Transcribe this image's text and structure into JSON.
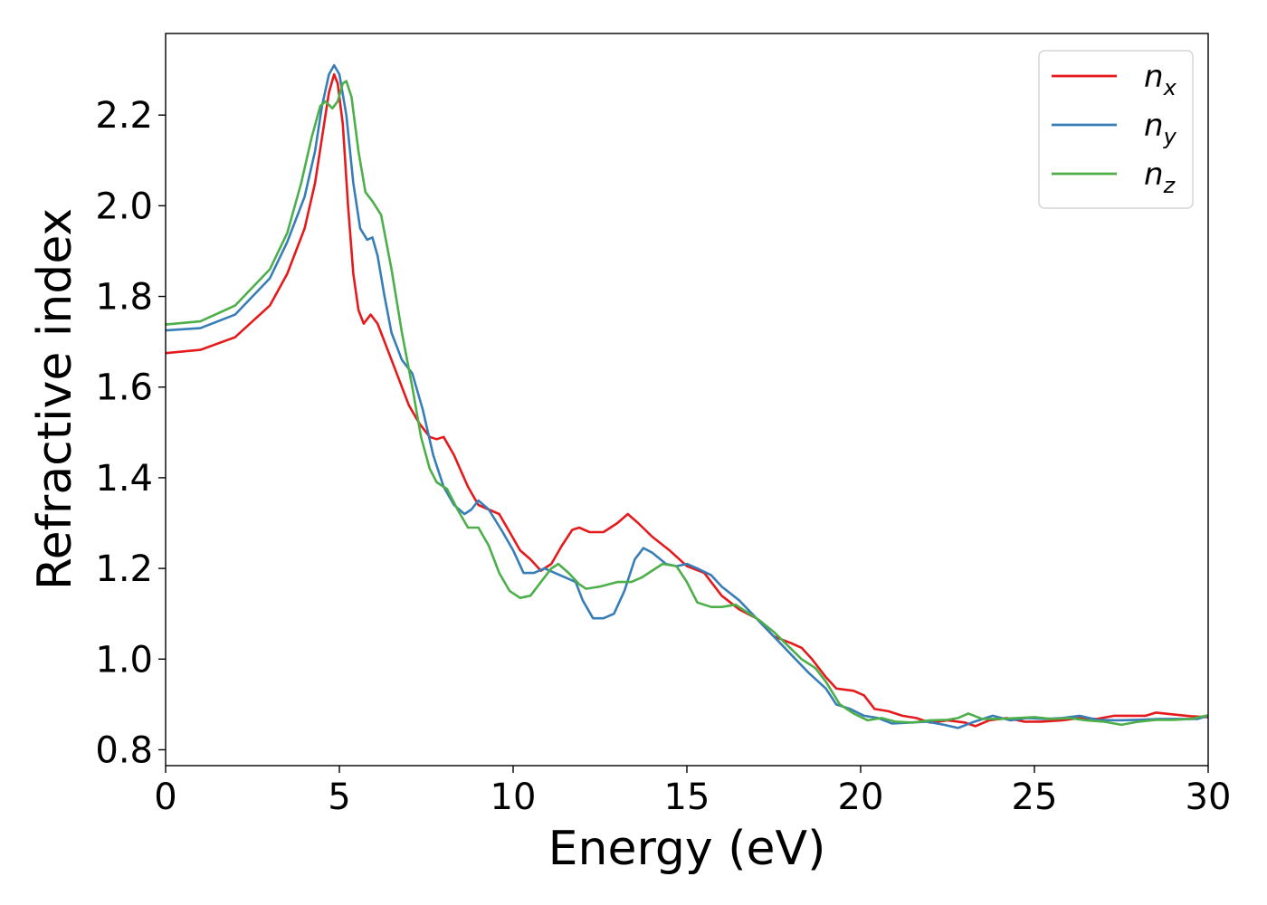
{
  "chart_data": {
    "type": "line",
    "title": "",
    "xlabel": "Energy (eV)",
    "ylabel": "Refractive index",
    "xlim": [
      0,
      30
    ],
    "ylim": [
      0.765,
      2.38
    ],
    "xticks": [
      0,
      5,
      10,
      15,
      20,
      25,
      30
    ],
    "xtick_labels": [
      "0",
      "5",
      "10",
      "15",
      "20",
      "25",
      "30"
    ],
    "yticks": [
      0.8,
      1.0,
      1.2,
      1.4,
      1.6,
      1.8,
      2.0,
      2.2
    ],
    "ytick_labels": [
      "0.8",
      "1.0",
      "1.2",
      "1.4",
      "1.6",
      "1.8",
      "2.0",
      "2.2"
    ],
    "grid": false,
    "legend_position": "top-right",
    "series": [
      {
        "name": "x",
        "legend_base": "n",
        "legend_sub": "x",
        "color": "#e41a1c",
        "points": [
          [
            0,
            1.675
          ],
          [
            1,
            1.682
          ],
          [
            2,
            1.71
          ],
          [
            3,
            1.78
          ],
          [
            3.5,
            1.85
          ],
          [
            4,
            1.95
          ],
          [
            4.3,
            2.05
          ],
          [
            4.5,
            2.15
          ],
          [
            4.7,
            2.25
          ],
          [
            4.85,
            2.29
          ],
          [
            4.95,
            2.27
          ],
          [
            5.1,
            2.18
          ],
          [
            5.25,
            2.0
          ],
          [
            5.4,
            1.85
          ],
          [
            5.55,
            1.77
          ],
          [
            5.7,
            1.74
          ],
          [
            5.9,
            1.76
          ],
          [
            6.1,
            1.74
          ],
          [
            6.4,
            1.68
          ],
          [
            6.7,
            1.62
          ],
          [
            7.0,
            1.56
          ],
          [
            7.3,
            1.52
          ],
          [
            7.6,
            1.49
          ],
          [
            7.8,
            1.485
          ],
          [
            8.0,
            1.49
          ],
          [
            8.3,
            1.45
          ],
          [
            8.7,
            1.38
          ],
          [
            9.0,
            1.34
          ],
          [
            9.3,
            1.33
          ],
          [
            9.6,
            1.32
          ],
          [
            9.9,
            1.28
          ],
          [
            10.2,
            1.24
          ],
          [
            10.5,
            1.22
          ],
          [
            10.8,
            1.195
          ],
          [
            11.1,
            1.21
          ],
          [
            11.4,
            1.25
          ],
          [
            11.7,
            1.285
          ],
          [
            11.9,
            1.29
          ],
          [
            12.2,
            1.28
          ],
          [
            12.6,
            1.28
          ],
          [
            13.0,
            1.3
          ],
          [
            13.3,
            1.32
          ],
          [
            13.6,
            1.3
          ],
          [
            14.0,
            1.27
          ],
          [
            14.5,
            1.24
          ],
          [
            15.0,
            1.205
          ],
          [
            15.5,
            1.19
          ],
          [
            16.0,
            1.14
          ],
          [
            16.5,
            1.11
          ],
          [
            17.0,
            1.09
          ],
          [
            17.5,
            1.05
          ],
          [
            18.0,
            1.035
          ],
          [
            18.3,
            1.025
          ],
          [
            18.6,
            1.0
          ],
          [
            19.0,
            0.96
          ],
          [
            19.3,
            0.935
          ],
          [
            19.8,
            0.93
          ],
          [
            20.1,
            0.92
          ],
          [
            20.4,
            0.89
          ],
          [
            20.8,
            0.885
          ],
          [
            21.2,
            0.875
          ],
          [
            21.6,
            0.87
          ],
          [
            22.0,
            0.86
          ],
          [
            22.5,
            0.865
          ],
          [
            23.0,
            0.86
          ],
          [
            23.3,
            0.852
          ],
          [
            23.7,
            0.865
          ],
          [
            24.2,
            0.87
          ],
          [
            24.7,
            0.862
          ],
          [
            25.2,
            0.862
          ],
          [
            25.8,
            0.865
          ],
          [
            26.3,
            0.87
          ],
          [
            26.8,
            0.868
          ],
          [
            27.3,
            0.875
          ],
          [
            27.8,
            0.875
          ],
          [
            28.2,
            0.875
          ],
          [
            28.5,
            0.882
          ],
          [
            29.0,
            0.878
          ],
          [
            29.5,
            0.874
          ],
          [
            30,
            0.872
          ]
        ]
      },
      {
        "name": "y",
        "legend_base": "n",
        "legend_sub": "y",
        "color": "#377eb8",
        "points": [
          [
            0,
            1.725
          ],
          [
            1,
            1.73
          ],
          [
            2,
            1.76
          ],
          [
            3,
            1.84
          ],
          [
            3.5,
            1.92
          ],
          [
            4,
            2.02
          ],
          [
            4.3,
            2.12
          ],
          [
            4.5,
            2.22
          ],
          [
            4.7,
            2.29
          ],
          [
            4.85,
            2.31
          ],
          [
            5.0,
            2.29
          ],
          [
            5.2,
            2.2
          ],
          [
            5.4,
            2.05
          ],
          [
            5.6,
            1.95
          ],
          [
            5.8,
            1.925
          ],
          [
            5.95,
            1.93
          ],
          [
            6.1,
            1.89
          ],
          [
            6.3,
            1.8
          ],
          [
            6.5,
            1.72
          ],
          [
            6.8,
            1.66
          ],
          [
            7.1,
            1.63
          ],
          [
            7.4,
            1.55
          ],
          [
            7.7,
            1.45
          ],
          [
            8.0,
            1.38
          ],
          [
            8.3,
            1.34
          ],
          [
            8.6,
            1.32
          ],
          [
            8.8,
            1.33
          ],
          [
            9.0,
            1.35
          ],
          [
            9.3,
            1.33
          ],
          [
            9.7,
            1.28
          ],
          [
            10.0,
            1.24
          ],
          [
            10.3,
            1.19
          ],
          [
            10.6,
            1.19
          ],
          [
            10.9,
            1.2
          ],
          [
            11.2,
            1.19
          ],
          [
            11.5,
            1.18
          ],
          [
            11.8,
            1.17
          ],
          [
            12.0,
            1.13
          ],
          [
            12.3,
            1.09
          ],
          [
            12.6,
            1.09
          ],
          [
            12.9,
            1.1
          ],
          [
            13.2,
            1.15
          ],
          [
            13.5,
            1.22
          ],
          [
            13.75,
            1.245
          ],
          [
            14.0,
            1.235
          ],
          [
            14.4,
            1.21
          ],
          [
            14.7,
            1.205
          ],
          [
            15.0,
            1.21
          ],
          [
            15.3,
            1.2
          ],
          [
            15.7,
            1.185
          ],
          [
            16.0,
            1.16
          ],
          [
            16.5,
            1.13
          ],
          [
            17.0,
            1.09
          ],
          [
            17.5,
            1.05
          ],
          [
            18.0,
            1.01
          ],
          [
            18.5,
            0.97
          ],
          [
            19.0,
            0.935
          ],
          [
            19.3,
            0.9
          ],
          [
            19.7,
            0.89
          ],
          [
            20.1,
            0.875
          ],
          [
            20.5,
            0.87
          ],
          [
            20.9,
            0.858
          ],
          [
            21.4,
            0.86
          ],
          [
            21.9,
            0.862
          ],
          [
            22.4,
            0.855
          ],
          [
            22.8,
            0.848
          ],
          [
            23.2,
            0.86
          ],
          [
            23.8,
            0.875
          ],
          [
            24.3,
            0.865
          ],
          [
            24.8,
            0.87
          ],
          [
            25.3,
            0.868
          ],
          [
            25.8,
            0.87
          ],
          [
            26.3,
            0.875
          ],
          [
            26.8,
            0.866
          ],
          [
            27.4,
            0.865
          ],
          [
            28.0,
            0.866
          ],
          [
            28.6,
            0.868
          ],
          [
            29.2,
            0.868
          ],
          [
            29.7,
            0.868
          ],
          [
            30,
            0.875
          ]
        ]
      },
      {
        "name": "z",
        "legend_base": "n",
        "legend_sub": "z",
        "color": "#4daf4a",
        "points": [
          [
            0,
            1.738
          ],
          [
            1,
            1.745
          ],
          [
            2,
            1.78
          ],
          [
            3,
            1.86
          ],
          [
            3.5,
            1.94
          ],
          [
            3.9,
            2.05
          ],
          [
            4.2,
            2.15
          ],
          [
            4.45,
            2.22
          ],
          [
            4.6,
            2.23
          ],
          [
            4.8,
            2.215
          ],
          [
            4.95,
            2.23
          ],
          [
            5.1,
            2.27
          ],
          [
            5.2,
            2.275
          ],
          [
            5.35,
            2.24
          ],
          [
            5.55,
            2.12
          ],
          [
            5.75,
            2.03
          ],
          [
            5.95,
            2.01
          ],
          [
            6.2,
            1.98
          ],
          [
            6.5,
            1.86
          ],
          [
            6.8,
            1.72
          ],
          [
            7.1,
            1.6
          ],
          [
            7.35,
            1.49
          ],
          [
            7.6,
            1.42
          ],
          [
            7.8,
            1.39
          ],
          [
            8.1,
            1.375
          ],
          [
            8.4,
            1.33
          ],
          [
            8.7,
            1.29
          ],
          [
            9.0,
            1.29
          ],
          [
            9.3,
            1.25
          ],
          [
            9.6,
            1.19
          ],
          [
            9.9,
            1.15
          ],
          [
            10.2,
            1.135
          ],
          [
            10.5,
            1.14
          ],
          [
            10.8,
            1.17
          ],
          [
            11.1,
            1.2
          ],
          [
            11.3,
            1.21
          ],
          [
            11.6,
            1.19
          ],
          [
            11.9,
            1.165
          ],
          [
            12.1,
            1.155
          ],
          [
            12.5,
            1.16
          ],
          [
            13.0,
            1.17
          ],
          [
            13.4,
            1.17
          ],
          [
            13.7,
            1.18
          ],
          [
            14.0,
            1.195
          ],
          [
            14.3,
            1.21
          ],
          [
            14.7,
            1.205
          ],
          [
            15.0,
            1.17
          ],
          [
            15.3,
            1.125
          ],
          [
            15.7,
            1.115
          ],
          [
            16.0,
            1.115
          ],
          [
            16.4,
            1.12
          ],
          [
            16.8,
            1.1
          ],
          [
            17.1,
            1.085
          ],
          [
            17.5,
            1.06
          ],
          [
            17.9,
            1.03
          ],
          [
            18.3,
            1.0
          ],
          [
            18.7,
            0.98
          ],
          [
            19.0,
            0.95
          ],
          [
            19.4,
            0.9
          ],
          [
            19.8,
            0.88
          ],
          [
            20.2,
            0.865
          ],
          [
            20.6,
            0.87
          ],
          [
            21.0,
            0.862
          ],
          [
            21.5,
            0.86
          ],
          [
            22.0,
            0.865
          ],
          [
            22.5,
            0.866
          ],
          [
            22.8,
            0.87
          ],
          [
            23.1,
            0.88
          ],
          [
            23.5,
            0.868
          ],
          [
            24.0,
            0.868
          ],
          [
            24.5,
            0.87
          ],
          [
            25.0,
            0.872
          ],
          [
            25.5,
            0.868
          ],
          [
            26.0,
            0.87
          ],
          [
            26.5,
            0.865
          ],
          [
            27.0,
            0.862
          ],
          [
            27.5,
            0.855
          ],
          [
            28.0,
            0.862
          ],
          [
            28.5,
            0.866
          ],
          [
            29.0,
            0.866
          ],
          [
            29.5,
            0.868
          ],
          [
            30,
            0.876
          ]
        ]
      }
    ]
  }
}
